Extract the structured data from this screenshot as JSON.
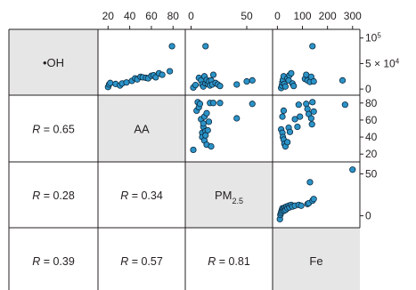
{
  "chart_data": {
    "type": "scatter",
    "subtype": "scatterplot-matrix",
    "variables": [
      {
        "key": "oh",
        "label": "•OH"
      },
      {
        "key": "aa",
        "label": "AA"
      },
      {
        "key": "pm",
        "label": "PM",
        "label_sub": "2.5"
      },
      {
        "key": "fe",
        "label": "Fe"
      }
    ],
    "colors": {
      "point_fill": "#2b93c8",
      "point_stroke": "#0d2a3f",
      "diagonal_fill": "#e6e6e6",
      "grid_line": "#231f20"
    },
    "top_ticks": [
      {
        "col": 1,
        "labels": [
          "20",
          "40",
          "60",
          "80"
        ],
        "values": [
          20,
          40,
          60,
          80
        ]
      },
      {
        "col": 2,
        "labels": [
          "0",
          "50"
        ],
        "values": [
          0,
          50
        ]
      },
      {
        "col": 3,
        "labels": [
          "0",
          "100",
          "200",
          "300"
        ],
        "values": [
          0,
          100,
          200,
          300
        ]
      }
    ],
    "right_ticks": [
      {
        "row": 0,
        "labels": [
          "10",
          "5 × 10",
          "0"
        ],
        "sup": [
          "5",
          "4",
          ""
        ],
        "values": [
          100000,
          50000,
          0
        ]
      },
      {
        "row": 1,
        "labels": [
          "80",
          "60",
          "40",
          "20"
        ],
        "values": [
          80,
          60,
          40,
          20
        ]
      },
      {
        "row": 2,
        "labels": [
          "50",
          "0"
        ],
        "values": [
          50,
          0
        ]
      }
    ],
    "correlations": [
      {
        "row": 1,
        "col": 0,
        "symbol": "R",
        "text": " = 0.65",
        "value": 0.65
      },
      {
        "row": 2,
        "col": 0,
        "symbol": "R",
        "text": " = 0.28",
        "value": 0.28
      },
      {
        "row": 2,
        "col": 1,
        "symbol": "R",
        "text": " = 0.34",
        "value": 0.34
      },
      {
        "row": 3,
        "col": 0,
        "symbol": "R",
        "text": " = 0.39",
        "value": 0.39
      },
      {
        "row": 3,
        "col": 1,
        "symbol": "R",
        "text": " = 0.57",
        "value": 0.57
      },
      {
        "row": 3,
        "col": 2,
        "symbol": "R",
        "text": " = 0.81",
        "value": 0.81
      }
    ],
    "panels": [
      {
        "row": 0,
        "col": 1,
        "x_var": "AA",
        "y_var": "OH",
        "xlim": [
          14,
          88
        ],
        "ylim": [
          -5000,
          110000
        ],
        "points": [
          [
            20,
            4000
          ],
          [
            21,
            9000
          ],
          [
            22,
            12000
          ],
          [
            27,
            10000
          ],
          [
            31,
            7000
          ],
          [
            33,
            11000
          ],
          [
            37,
            13000
          ],
          [
            42,
            16000
          ],
          [
            45,
            21000
          ],
          [
            47,
            19000
          ],
          [
            50,
            24000
          ],
          [
            52,
            23000
          ],
          [
            55,
            22000
          ],
          [
            57,
            21000
          ],
          [
            60,
            26000
          ],
          [
            62,
            27000
          ],
          [
            64,
            23000
          ],
          [
            67,
            31000
          ],
          [
            70,
            28000
          ],
          [
            77,
            35000
          ],
          [
            79,
            84000
          ]
        ]
      },
      {
        "row": 0,
        "col": 2,
        "x_var": "PM2.5",
        "y_var": "OH",
        "xlim": [
          -2,
          70
        ],
        "ylim": [
          -5000,
          110000
        ],
        "points": [
          [
            2,
            3000
          ],
          [
            4,
            8000
          ],
          [
            7,
            22000
          ],
          [
            9,
            17000
          ],
          [
            10,
            9000
          ],
          [
            11,
            5000
          ],
          [
            12,
            25000
          ],
          [
            13,
            11000
          ],
          [
            14,
            18000
          ],
          [
            15,
            10000
          ],
          [
            16,
            15000
          ],
          [
            17,
            7000
          ],
          [
            18,
            17000
          ],
          [
            19,
            9000
          ],
          [
            20,
            28000
          ],
          [
            22,
            12000
          ],
          [
            24,
            9000
          ],
          [
            26,
            6000
          ],
          [
            13,
            84000
          ],
          [
            41,
            9000
          ],
          [
            50,
            15000
          ],
          [
            55,
            17000
          ]
        ]
      },
      {
        "row": 0,
        "col": 3,
        "x_var": "Fe",
        "y_var": "OH",
        "xlim": [
          -5,
          315
        ],
        "ylim": [
          -5000,
          110000
        ],
        "points": [
          [
            15,
            2000
          ],
          [
            18,
            7000
          ],
          [
            20,
            13000
          ],
          [
            22,
            18000
          ],
          [
            25,
            25000
          ],
          [
            28,
            10000
          ],
          [
            32,
            5000
          ],
          [
            40,
            21000
          ],
          [
            45,
            17000
          ],
          [
            48,
            27000
          ],
          [
            55,
            31000
          ],
          [
            60,
            11000
          ],
          [
            65,
            6000
          ],
          [
            110,
            20000
          ],
          [
            115,
            28000
          ],
          [
            120,
            17000
          ],
          [
            130,
            14000
          ],
          [
            135,
            24000
          ],
          [
            140,
            84000
          ],
          [
            145,
            15000
          ],
          [
            260,
            17000
          ]
        ]
      },
      {
        "row": 1,
        "col": 2,
        "x_var": "PM2.5",
        "y_var": "AA",
        "xlim": [
          -2,
          70
        ],
        "ylim": [
          15,
          85
        ],
        "points": [
          [
            2,
            25
          ],
          [
            5,
            71
          ],
          [
            6,
            81
          ],
          [
            7,
            75
          ],
          [
            8,
            79
          ],
          [
            9,
            61
          ],
          [
            10,
            45
          ],
          [
            10,
            40
          ],
          [
            11,
            52
          ],
          [
            11,
            56
          ],
          [
            12,
            64
          ],
          [
            12,
            36
          ],
          [
            13,
            47
          ],
          [
            13,
            42
          ],
          [
            14,
            68
          ],
          [
            14,
            31
          ],
          [
            15,
            48
          ],
          [
            16,
            58
          ],
          [
            17,
            80
          ],
          [
            18,
            29
          ],
          [
            20,
            80
          ],
          [
            26,
            80
          ],
          [
            41,
            62
          ],
          [
            55,
            79
          ]
        ]
      },
      {
        "row": 1,
        "col": 3,
        "x_var": "Fe",
        "y_var": "AA",
        "xlim": [
          -5,
          315
        ],
        "ylim": [
          15,
          85
        ],
        "points": [
          [
            15,
            49
          ],
          [
            20,
            45
          ],
          [
            22,
            40
          ],
          [
            25,
            37
          ],
          [
            28,
            32
          ],
          [
            32,
            29
          ],
          [
            20,
            64
          ],
          [
            25,
            71
          ],
          [
            40,
            34
          ],
          [
            45,
            51
          ],
          [
            50,
            46
          ],
          [
            70,
            61
          ],
          [
            80,
            52
          ],
          [
            85,
            78
          ],
          [
            90,
            64
          ],
          [
            115,
            79
          ],
          [
            120,
            73
          ],
          [
            125,
            67
          ],
          [
            135,
            62
          ],
          [
            138,
            55
          ],
          [
            140,
            81
          ],
          [
            145,
            70
          ],
          [
            270,
            78
          ]
        ]
      },
      {
        "row": 2,
        "col": 3,
        "x_var": "Fe",
        "y_var": "PM2.5",
        "xlim": [
          -5,
          315
        ],
        "ylim": [
          -10,
          60
        ],
        "points": [
          [
            10,
            -4
          ],
          [
            12,
            1
          ],
          [
            14,
            3
          ],
          [
            16,
            5
          ],
          [
            18,
            7
          ],
          [
            20,
            9
          ],
          [
            24,
            8
          ],
          [
            27,
            6
          ],
          [
            30,
            10
          ],
          [
            33,
            7
          ],
          [
            36,
            11
          ],
          [
            40,
            9
          ],
          [
            45,
            12
          ],
          [
            48,
            10
          ],
          [
            55,
            13
          ],
          [
            60,
            11
          ],
          [
            70,
            12
          ],
          [
            85,
            13
          ],
          [
            95,
            12
          ],
          [
            120,
            14
          ],
          [
            125,
            15
          ],
          [
            130,
            40
          ],
          [
            140,
            18
          ],
          [
            145,
            20
          ],
          [
            300,
            55
          ]
        ]
      }
    ]
  }
}
